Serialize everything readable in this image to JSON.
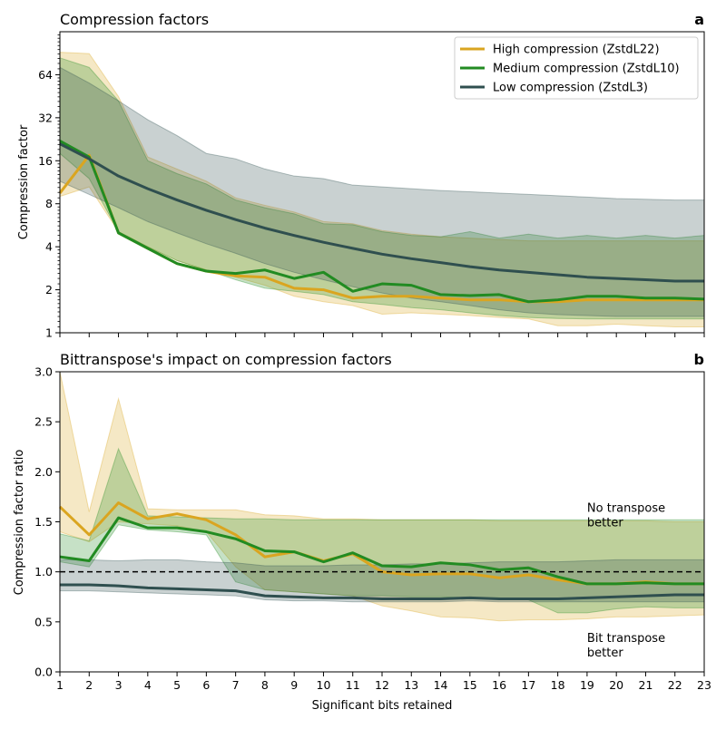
{
  "chart_data": [
    {
      "type": "line",
      "panel_letter": "a",
      "title": "Compression factors",
      "xlabel": "",
      "ylabel": "Compression factor",
      "yscale": "log2",
      "ylim": [
        1,
        128
      ],
      "xlim": [
        1,
        23
      ],
      "yticks": [
        1,
        2,
        4,
        8,
        16,
        32,
        64
      ],
      "ytick_labels": [
        "1",
        "2",
        "4",
        "8",
        "16",
        "32",
        "64"
      ],
      "x": [
        1,
        2,
        3,
        4,
        5,
        6,
        7,
        8,
        9,
        10,
        11,
        12,
        13,
        14,
        15,
        16,
        17,
        18,
        19,
        20,
        21,
        22,
        23
      ],
      "legend_position": "top-right",
      "series": [
        {
          "name": "High compression (ZstdL22)",
          "color": "#DAA520",
          "values": [
            9.5,
            17.5,
            5.0,
            3.9,
            3.05,
            2.7,
            2.5,
            2.45,
            2.05,
            2.0,
            1.75,
            1.8,
            1.8,
            1.75,
            1.7,
            1.7,
            1.65,
            1.65,
            1.7,
            1.7,
            1.7,
            1.7,
            1.7
          ],
          "band_low": [
            9.0,
            10.5,
            5.1,
            4.0,
            3.2,
            2.75,
            2.45,
            2.15,
            1.8,
            1.65,
            1.55,
            1.35,
            1.38,
            1.35,
            1.32,
            1.28,
            1.25,
            1.12,
            1.12,
            1.15,
            1.12,
            1.1,
            1.1
          ],
          "band_high": [
            92,
            90,
            45,
            17,
            14,
            11.5,
            8.8,
            7.8,
            7.0,
            6.0,
            5.8,
            5.2,
            4.9,
            4.7,
            4.6,
            4.5,
            4.4,
            4.4,
            4.4,
            4.4,
            4.4,
            4.4,
            4.4
          ]
        },
        {
          "name": "Medium compression (ZstdL10)",
          "color": "#228B22",
          "values": [
            22,
            17,
            5.0,
            3.9,
            3.05,
            2.7,
            2.6,
            2.75,
            2.4,
            2.65,
            1.95,
            2.2,
            2.15,
            1.85,
            1.82,
            1.85,
            1.65,
            1.7,
            1.8,
            1.8,
            1.75,
            1.75,
            1.72
          ],
          "band_low": [
            18,
            12,
            5.1,
            4.0,
            3.2,
            2.75,
            2.35,
            2.05,
            1.95,
            1.85,
            1.65,
            1.58,
            1.5,
            1.45,
            1.38,
            1.32,
            1.28,
            1.26,
            1.25,
            1.25,
            1.25,
            1.25,
            1.25
          ],
          "band_high": [
            84,
            72,
            42,
            16,
            13,
            11,
            8.5,
            7.5,
            6.8,
            5.8,
            5.7,
            5.1,
            4.8,
            4.7,
            5.1,
            4.6,
            4.9,
            4.6,
            4.8,
            4.6,
            4.8,
            4.6,
            4.8
          ]
        },
        {
          "name": "Low compression (ZstdL3)",
          "color": "#2F4F4F",
          "values": [
            21,
            16.5,
            12.5,
            10.2,
            8.5,
            7.2,
            6.2,
            5.4,
            4.8,
            4.3,
            3.9,
            3.55,
            3.3,
            3.1,
            2.9,
            2.75,
            2.65,
            2.55,
            2.45,
            2.4,
            2.35,
            2.3,
            2.3
          ],
          "band_low": [
            11.5,
            9.3,
            7.5,
            6.0,
            5.0,
            4.2,
            3.6,
            3.05,
            2.65,
            2.35,
            2.1,
            1.9,
            1.75,
            1.65,
            1.55,
            1.45,
            1.38,
            1.34,
            1.32,
            1.3,
            1.3,
            1.3,
            1.3
          ],
          "band_high": [
            72,
            56,
            42,
            31,
            24,
            18,
            16.5,
            14,
            12.5,
            12,
            10.8,
            10.5,
            10.2,
            9.9,
            9.7,
            9.5,
            9.3,
            9.1,
            8.9,
            8.7,
            8.6,
            8.5,
            8.5
          ]
        }
      ]
    },
    {
      "type": "line",
      "panel_letter": "b",
      "title": "Bittranspose's impact on compression factors",
      "xlabel": "Significant bits retained",
      "ylabel": "Compression factor ratio",
      "ylim": [
        0,
        3
      ],
      "xlim": [
        1,
        23
      ],
      "yticks": [
        0.0,
        0.5,
        1.0,
        1.5,
        2.0,
        2.5,
        3.0
      ],
      "ytick_labels": [
        "0.0",
        "0.5",
        "1.0",
        "1.5",
        "2.0",
        "2.5",
        "3.0"
      ],
      "x": [
        1,
        2,
        3,
        4,
        5,
        6,
        7,
        8,
        9,
        10,
        11,
        12,
        13,
        14,
        15,
        16,
        17,
        18,
        19,
        20,
        21,
        22,
        23
      ],
      "xtick_labels": [
        "1",
        "2",
        "3",
        "4",
        "5",
        "6",
        "7",
        "8",
        "9",
        "10",
        "11",
        "12",
        "13",
        "14",
        "15",
        "16",
        "17",
        "18",
        "19",
        "20",
        "21",
        "22",
        "23"
      ],
      "reference_line": 1.0,
      "annotations": [
        {
          "text_lines": [
            "No transpose",
            "better"
          ],
          "x": 19,
          "y": 1.6
        },
        {
          "text_lines": [
            "Bit transpose",
            "better"
          ],
          "x": 19,
          "y": 0.3
        }
      ],
      "series": [
        {
          "name": "High compression (ZstdL22)",
          "color": "#DAA520",
          "values": [
            1.65,
            1.37,
            1.69,
            1.53,
            1.58,
            1.52,
            1.37,
            1.15,
            1.2,
            1.11,
            1.18,
            1.0,
            0.97,
            0.98,
            0.98,
            0.94,
            0.97,
            0.92,
            0.88,
            0.88,
            0.9,
            0.88,
            0.88
          ],
          "band_low": [
            1.4,
            1.3,
            1.5,
            1.48,
            1.46,
            1.4,
            1.05,
            0.82,
            0.8,
            0.78,
            0.76,
            0.66,
            0.61,
            0.55,
            0.54,
            0.51,
            0.52,
            0.52,
            0.53,
            0.55,
            0.55,
            0.56,
            0.57
          ],
          "band_high": [
            3.0,
            1.6,
            2.73,
            1.63,
            1.62,
            1.62,
            1.62,
            1.57,
            1.56,
            1.53,
            1.53,
            1.52,
            1.52,
            1.52,
            1.52,
            1.51,
            1.51,
            1.51,
            1.51,
            1.51,
            1.51,
            1.5,
            1.5
          ]
        },
        {
          "name": "Medium compression (ZstdL10)",
          "color": "#228B22",
          "values": [
            1.15,
            1.11,
            1.54,
            1.44,
            1.44,
            1.4,
            1.33,
            1.21,
            1.2,
            1.1,
            1.19,
            1.06,
            1.05,
            1.09,
            1.07,
            1.02,
            1.04,
            0.95,
            0.88,
            0.88,
            0.89,
            0.88,
            0.88
          ],
          "band_low": [
            1.1,
            1.05,
            1.47,
            1.42,
            1.4,
            1.37,
            0.9,
            0.82,
            0.8,
            0.78,
            0.76,
            0.76,
            0.75,
            0.75,
            0.74,
            0.74,
            0.72,
            0.59,
            0.59,
            0.63,
            0.65,
            0.64,
            0.64
          ],
          "band_high": [
            1.38,
            1.31,
            2.23,
            1.56,
            1.55,
            1.54,
            1.53,
            1.53,
            1.52,
            1.52,
            1.52,
            1.52,
            1.52,
            1.52,
            1.52,
            1.52,
            1.52,
            1.52,
            1.52,
            1.52,
            1.52,
            1.52,
            1.52
          ]
        },
        {
          "name": "Low compression (ZstdL3)",
          "color": "#2F4F4F",
          "values": [
            0.87,
            0.87,
            0.86,
            0.84,
            0.83,
            0.82,
            0.81,
            0.76,
            0.75,
            0.74,
            0.74,
            0.73,
            0.73,
            0.73,
            0.74,
            0.73,
            0.73,
            0.73,
            0.74,
            0.75,
            0.76,
            0.77,
            0.77
          ],
          "band_low": [
            0.81,
            0.81,
            0.8,
            0.79,
            0.78,
            0.77,
            0.76,
            0.72,
            0.71,
            0.71,
            0.7,
            0.7,
            0.7,
            0.7,
            0.71,
            0.7,
            0.7,
            0.7,
            0.7,
            0.7,
            0.7,
            0.7,
            0.7
          ],
          "band_high": [
            1.12,
            1.12,
            1.11,
            1.12,
            1.12,
            1.1,
            1.09,
            1.06,
            1.06,
            1.06,
            1.07,
            1.07,
            1.08,
            1.08,
            1.09,
            1.1,
            1.1,
            1.1,
            1.11,
            1.12,
            1.12,
            1.12,
            1.12
          ]
        }
      ]
    }
  ]
}
